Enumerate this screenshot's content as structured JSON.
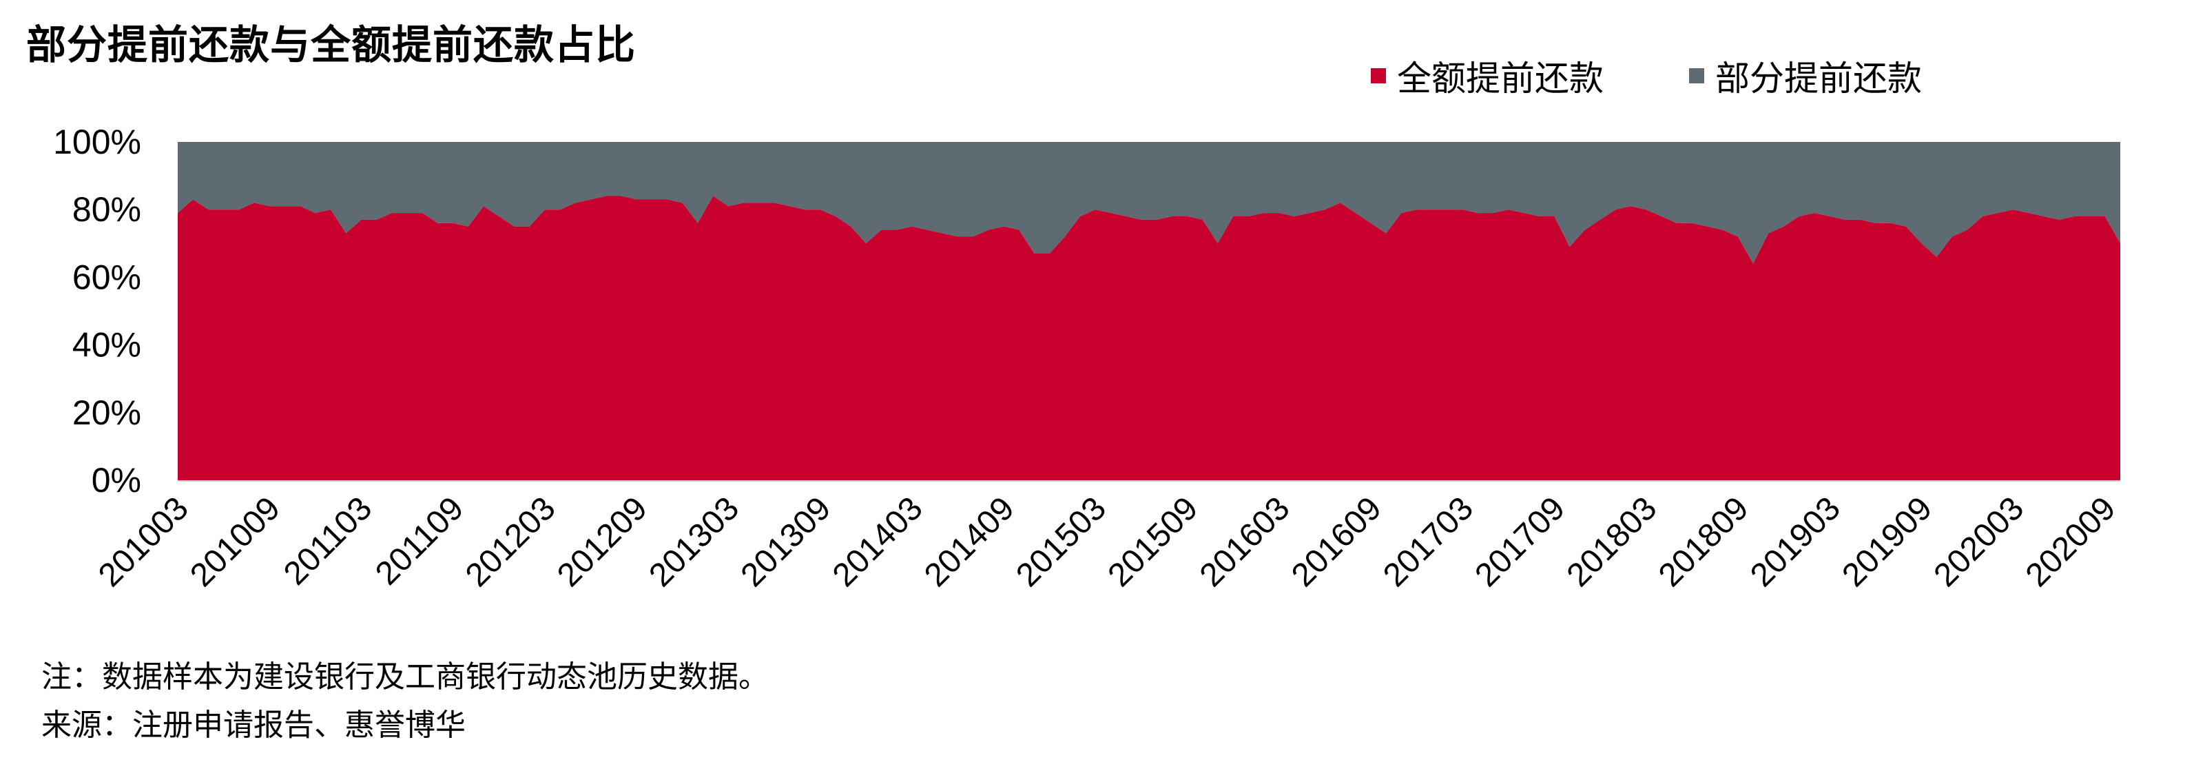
{
  "title": "部分提前还款与全额提前还款占比",
  "note": "注：数据样本为建设银行及工商银行动态池历史数据。",
  "source": "来源：注册申请报告、惠誉博华",
  "colors": {
    "full": "#C8002D",
    "partial": "#5F6B73"
  },
  "chart_data": {
    "type": "area",
    "stacked": true,
    "percent": true,
    "ylim": [
      0,
      100
    ],
    "yticks": [
      "0%",
      "20%",
      "40%",
      "60%",
      "80%",
      "100%"
    ],
    "xtick_labels": [
      "201003",
      "201009",
      "201103",
      "201109",
      "201203",
      "201209",
      "201303",
      "201309",
      "201403",
      "201409",
      "201503",
      "201509",
      "201603",
      "201609",
      "201703",
      "201709",
      "201803",
      "201809",
      "201903",
      "201909",
      "202003",
      "202009"
    ],
    "x_start": "201003",
    "series": [
      {
        "name": "全额提前还款",
        "values": [
          79,
          83,
          80,
          80,
          80,
          82,
          81,
          81,
          81,
          79,
          80,
          73,
          77,
          77,
          79,
          79,
          79,
          76,
          76,
          75,
          81,
          78,
          75,
          75,
          80,
          80,
          82,
          83,
          84,
          84,
          83,
          83,
          83,
          82,
          76,
          84,
          81,
          82,
          82,
          82,
          81,
          80,
          80,
          78,
          75,
          70,
          74,
          74,
          75,
          74,
          73,
          72,
          72,
          74,
          75,
          74,
          67,
          67,
          72,
          78,
          80,
          79,
          78,
          77,
          77,
          78,
          78,
          77,
          70,
          78,
          78,
          79,
          79,
          78,
          79,
          80,
          82,
          79,
          76,
          73,
          79,
          80,
          80,
          80,
          80,
          79,
          79,
          80,
          79,
          78,
          78,
          69,
          74,
          77,
          80,
          81,
          80,
          78,
          76,
          76,
          75,
          74,
          72,
          64,
          73,
          75,
          78,
          79,
          78,
          77,
          77,
          76,
          76,
          75,
          70,
          66,
          72,
          74,
          78,
          79,
          80,
          79,
          78,
          77,
          78,
          78,
          78,
          70
        ],
        "color": "#C8002D"
      },
      {
        "name": "部分提前还款",
        "color": "#5F6B73"
      }
    ]
  }
}
